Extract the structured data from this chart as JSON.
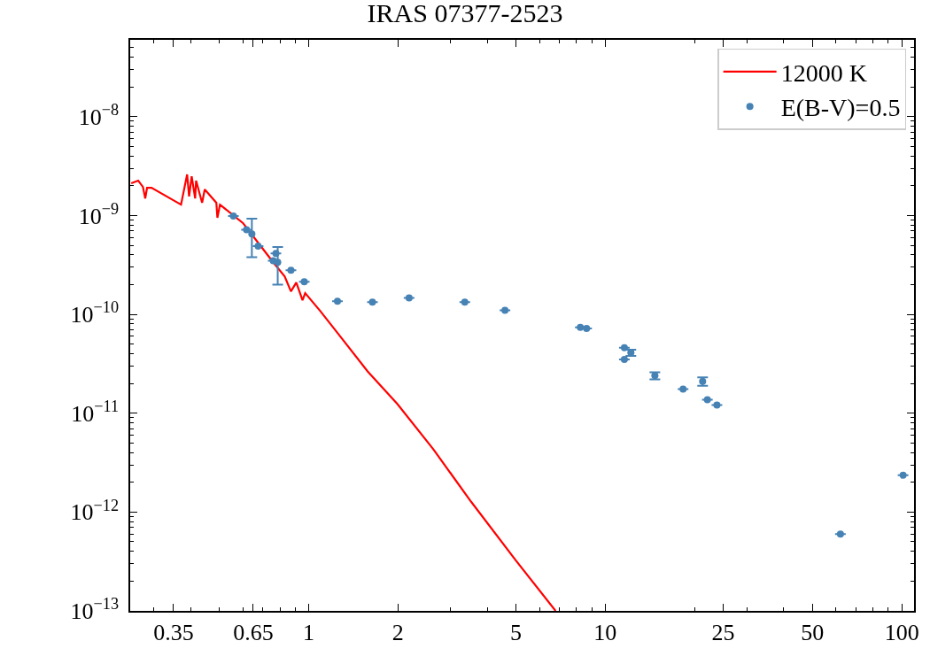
{
  "chart_data": {
    "type": "scatter",
    "title": "IRAS 07377-2523",
    "log": "xy",
    "legend": "top right",
    "xlim": [
      0.25,
      110
    ],
    "ylim": [
      1e-13,
      6e-08
    ],
    "xticks": [
      0.35,
      0.65,
      1,
      2,
      5,
      10,
      25,
      50,
      100
    ],
    "yticks": [
      {
        "value": 1e-13,
        "label": "10$^{−13}$"
      },
      {
        "value": 1e-12,
        "label": "10$^{−12}$"
      },
      {
        "value": 1e-11,
        "label": "10$^{−11}$"
      },
      {
        "value": 1e-10,
        "label": "10$^{−10}$"
      },
      {
        "value": 1e-09,
        "label": "10$^{−9}$"
      },
      {
        "value": 1e-08,
        "label": "10$^{−8}$"
      }
    ],
    "series": [
      {
        "name": "12000 K",
        "type": "line",
        "color": "#ff0000",
        "line_style": "solid",
        "marker": "none",
        "x": [
          0.252,
          0.266,
          0.276,
          0.281,
          0.285,
          0.295,
          0.371,
          0.389,
          0.395,
          0.403,
          0.414,
          0.417,
          0.437,
          0.446,
          0.488,
          0.492,
          0.502,
          0.6,
          0.759,
          0.83,
          0.871,
          0.908,
          0.953,
          0.973,
          1.094,
          1.28,
          1.58,
          1.99,
          2.62,
          3.53,
          4.99,
          6.8
        ],
        "values": [
          2.12e-09,
          2.26e-09,
          1.95e-09,
          1.49e-09,
          1.91e-09,
          1.91e-09,
          1.29e-09,
          2.61e-09,
          1.56e-09,
          2.5e-09,
          1.49e-09,
          2.26e-09,
          1.35e-09,
          1.84e-09,
          1.35e-09,
          9.5e-10,
          1.29e-09,
          8.4e-10,
          3.37e-10,
          2.42e-10,
          1.71e-10,
          2.1e-10,
          1.39e-10,
          1.64e-10,
          1.08e-10,
          5.94e-11,
          2.65e-11,
          1.24e-11,
          4.4e-12,
          1.27e-12,
          3.25e-13,
          1e-13
        ]
      },
      {
        "name": "E(B-V)=0.5",
        "color": "#4682b4",
        "marker": "circle",
        "x": [
          0.557,
          0.617,
          0.643,
          0.675,
          0.759,
          0.775,
          0.786,
          0.871,
          0.966,
          1.25,
          1.64,
          2.18,
          3.36,
          4.59,
          8.24,
          8.65,
          11.6,
          12.2,
          11.6,
          14.7,
          18.3,
          21.3,
          22.1,
          23.8,
          62.1,
          101
        ],
        "values": [
          9.9e-10,
          7.2e-10,
          6.5e-10,
          4.9e-10,
          3.5e-10,
          4.15e-10,
          3.37e-10,
          2.8e-10,
          2.14e-10,
          1.36e-10,
          1.33e-10,
          1.47e-10,
          1.33e-10,
          1.1e-10,
          7.4e-11,
          7.2e-11,
          4.6e-11,
          4.1e-11,
          3.5e-11,
          2.4e-11,
          1.75e-11,
          2.1e-11,
          1.37e-11,
          1.21e-11,
          6e-13,
          2.36e-12
        ],
        "errors": [
          null,
          null,
          [
            3.8e-10,
            9.3e-10
          ],
          null,
          null,
          null,
          [
            2e-10,
            4.8e-10
          ],
          null,
          null,
          null,
          null,
          null,
          null,
          null,
          null,
          null,
          null,
          [
            3.8e-11,
            4.4e-11
          ],
          null,
          [
            2.2e-11,
            2.6e-11
          ],
          null,
          [
            1.9e-11,
            2.3e-11
          ],
          null,
          null,
          null,
          null
        ]
      }
    ]
  }
}
